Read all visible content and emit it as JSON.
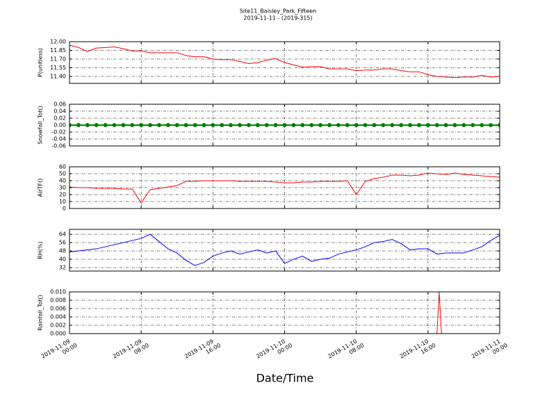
{
  "chart_data": [
    {
      "type": "line",
      "title": "Site11_Baisley_Park_Fifteen",
      "subtitle": "2019-11-11 - (2019-315)",
      "ylabel": "P(unitless)",
      "color": "#ff0000",
      "grid": true,
      "xlim": [
        "2019-11-09 00:00",
        "2019-11-11 00:00"
      ],
      "xticks": [
        "2019-11-09 00:00",
        "2019-11-09 08:00",
        "2019-11-09 16:00",
        "2019-11-10 00:00",
        "2019-11-10 08:00",
        "2019-11-10 16:00",
        "2019-11-11 00:00"
      ],
      "ylim": [
        11.28,
        12.0
      ],
      "yticks": [
        {
          "value": 11.4,
          "label": "11.40"
        },
        11.55,
        {
          "value": 11.7,
          "label": "11.70"
        },
        11.85,
        {
          "value": 12.0,
          "label": "12.00"
        }
      ],
      "x": [
        "2019-11-09 00:00",
        "2019-11-09 01:00",
        "2019-11-09 02:00",
        "2019-11-09 03:00",
        "2019-11-09 04:00",
        "2019-11-09 05:00",
        "2019-11-09 06:00",
        "2019-11-09 07:00",
        "2019-11-09 08:00",
        "2019-11-09 09:00",
        "2019-11-09 10:00",
        "2019-11-09 11:00",
        "2019-11-09 12:00",
        "2019-11-09 13:00",
        "2019-11-09 14:00",
        "2019-11-09 15:00",
        "2019-11-09 16:00",
        "2019-11-09 17:00",
        "2019-11-09 18:00",
        "2019-11-09 19:00",
        "2019-11-09 20:00",
        "2019-11-09 21:00",
        "2019-11-09 22:00",
        "2019-11-09 23:00",
        "2019-11-10 00:00",
        "2019-11-10 01:00",
        "2019-11-10 02:00",
        "2019-11-10 03:00",
        "2019-11-10 04:00",
        "2019-11-10 05:00",
        "2019-11-10 06:00",
        "2019-11-10 07:00",
        "2019-11-10 08:00",
        "2019-11-10 09:00",
        "2019-11-10 10:00",
        "2019-11-10 11:00",
        "2019-11-10 12:00",
        "2019-11-10 13:00",
        "2019-11-10 14:00",
        "2019-11-10 15:00",
        "2019-11-10 16:00",
        "2019-11-10 17:00",
        "2019-11-10 18:00",
        "2019-11-10 19:00",
        "2019-11-10 20:00",
        "2019-11-10 21:00",
        "2019-11-10 22:00",
        "2019-11-10 23:00",
        "2019-11-11 00:00"
      ],
      "values": [
        11.94,
        11.9,
        11.83,
        11.89,
        11.9,
        11.91,
        11.88,
        11.84,
        11.84,
        11.81,
        11.81,
        11.81,
        11.81,
        11.76,
        11.74,
        11.74,
        11.7,
        11.69,
        11.69,
        11.66,
        11.62,
        11.64,
        11.68,
        11.71,
        11.64,
        11.6,
        11.56,
        11.57,
        11.57,
        11.53,
        11.53,
        11.53,
        11.5,
        11.51,
        11.51,
        11.53,
        11.53,
        11.5,
        11.48,
        11.48,
        11.43,
        11.4,
        11.39,
        11.38,
        11.39,
        11.39,
        11.42,
        11.39,
        11.4
      ]
    },
    {
      "type": "line",
      "ylabel": "Snowfall_Tot()",
      "color": "#008000",
      "marker": true,
      "grid": true,
      "xlim": [
        "2019-11-09 00:00",
        "2019-11-11 00:00"
      ],
      "xticks": [
        "2019-11-09 00:00",
        "2019-11-09 08:00",
        "2019-11-09 16:00",
        "2019-11-10 00:00",
        "2019-11-10 08:00",
        "2019-11-10 16:00",
        "2019-11-11 00:00"
      ],
      "ylim": [
        -0.06,
        0.06
      ],
      "yticks": [
        -0.06,
        -0.04,
        -0.02,
        {
          "value": 0,
          "label": "0.00"
        },
        0.02,
        0.04,
        0.06
      ],
      "x": [
        "2019-11-09 00:00",
        "2019-11-09 01:00",
        "2019-11-09 02:00",
        "2019-11-09 03:00",
        "2019-11-09 04:00",
        "2019-11-09 05:00",
        "2019-11-09 06:00",
        "2019-11-09 07:00",
        "2019-11-09 08:00",
        "2019-11-09 09:00",
        "2019-11-09 10:00",
        "2019-11-09 11:00",
        "2019-11-09 12:00",
        "2019-11-09 13:00",
        "2019-11-09 14:00",
        "2019-11-09 15:00",
        "2019-11-09 16:00",
        "2019-11-09 17:00",
        "2019-11-09 18:00",
        "2019-11-09 19:00",
        "2019-11-09 20:00",
        "2019-11-09 21:00",
        "2019-11-09 22:00",
        "2019-11-09 23:00",
        "2019-11-10 00:00",
        "2019-11-10 01:00",
        "2019-11-10 02:00",
        "2019-11-10 03:00",
        "2019-11-10 04:00",
        "2019-11-10 05:00",
        "2019-11-10 06:00",
        "2019-11-10 07:00",
        "2019-11-10 08:00",
        "2019-11-10 09:00",
        "2019-11-10 10:00",
        "2019-11-10 11:00",
        "2019-11-10 12:00",
        "2019-11-10 13:00",
        "2019-11-10 14:00",
        "2019-11-10 15:00",
        "2019-11-10 16:00",
        "2019-11-10 17:00",
        "2019-11-10 18:00",
        "2019-11-10 19:00",
        "2019-11-10 20:00",
        "2019-11-10 21:00",
        "2019-11-10 22:00",
        "2019-11-10 23:00",
        "2019-11-11 00:00"
      ],
      "values": [
        0,
        0,
        0,
        0,
        0,
        0,
        0,
        0,
        0,
        0,
        0,
        0,
        0,
        0,
        0,
        0,
        0,
        0,
        0,
        0,
        0,
        0,
        0,
        0,
        0,
        0,
        0,
        0,
        0,
        0,
        0,
        0,
        0,
        0,
        0,
        0,
        0,
        0,
        0,
        0,
        0,
        0,
        0,
        0,
        0,
        0,
        0,
        0,
        0
      ]
    },
    {
      "type": "line",
      "ylabel": "AirTF()",
      "color": "#ff0000",
      "grid": true,
      "xlim": [
        "2019-11-09 00:00",
        "2019-11-11 00:00"
      ],
      "xticks": [
        "2019-11-09 00:00",
        "2019-11-09 08:00",
        "2019-11-09 16:00",
        "2019-11-10 00:00",
        "2019-11-10 08:00",
        "2019-11-10 16:00",
        "2019-11-11 00:00"
      ],
      "ylim": [
        0,
        60
      ],
      "yticks": [
        0,
        10,
        20,
        30,
        40,
        50,
        60
      ],
      "x": [
        "2019-11-09 00:00",
        "2019-11-09 01:00",
        "2019-11-09 02:00",
        "2019-11-09 03:00",
        "2019-11-09 04:00",
        "2019-11-09 05:00",
        "2019-11-09 06:00",
        "2019-11-09 07:00",
        "2019-11-09 08:00",
        "2019-11-09 09:00",
        "2019-11-09 10:00",
        "2019-11-09 11:00",
        "2019-11-09 12:00",
        "2019-11-09 13:00",
        "2019-11-09 14:00",
        "2019-11-09 15:00",
        "2019-11-09 16:00",
        "2019-11-09 17:00",
        "2019-11-09 18:00",
        "2019-11-09 19:00",
        "2019-11-09 20:00",
        "2019-11-09 21:00",
        "2019-11-09 22:00",
        "2019-11-09 23:00",
        "2019-11-10 00:00",
        "2019-11-10 01:00",
        "2019-11-10 02:00",
        "2019-11-10 03:00",
        "2019-11-10 04:00",
        "2019-11-10 05:00",
        "2019-11-10 06:00",
        "2019-11-10 07:00",
        "2019-11-10 08:00",
        "2019-11-10 09:00",
        "2019-11-10 10:00",
        "2019-11-10 11:00",
        "2019-11-10 12:00",
        "2019-11-10 13:00",
        "2019-11-10 14:00",
        "2019-11-10 15:00",
        "2019-11-10 16:00",
        "2019-11-10 17:00",
        "2019-11-10 18:00",
        "2019-11-10 19:00",
        "2019-11-10 20:00",
        "2019-11-10 21:00",
        "2019-11-10 22:00",
        "2019-11-10 23:00",
        "2019-11-11 00:00"
      ],
      "values": [
        31,
        30,
        30,
        29,
        29,
        29,
        28,
        28,
        8,
        27,
        29,
        31,
        33,
        39,
        39,
        40,
        40,
        40,
        40,
        39,
        39,
        39,
        39,
        38,
        37,
        37,
        38,
        38,
        39,
        39,
        39,
        40,
        20,
        39,
        43,
        45,
        48,
        48,
        47,
        48,
        51,
        50,
        49,
        51,
        49,
        48,
        47,
        46,
        45
      ]
    },
    {
      "type": "line",
      "ylabel": "RH(%)",
      "color": "#0000ff",
      "grid": true,
      "xlim": [
        "2019-11-09 00:00",
        "2019-11-11 00:00"
      ],
      "xticks": [
        "2019-11-09 00:00",
        "2019-11-09 08:00",
        "2019-11-09 16:00",
        "2019-11-10 00:00",
        "2019-11-10 08:00",
        "2019-11-10 16:00",
        "2019-11-11 00:00"
      ],
      "ylim": [
        28.7,
        68.7
      ],
      "yticks": [
        32,
        40,
        48,
        56,
        64
      ],
      "x": [
        "2019-11-09 00:00",
        "2019-11-09 01:00",
        "2019-11-09 02:00",
        "2019-11-09 03:00",
        "2019-11-09 04:00",
        "2019-11-09 05:00",
        "2019-11-09 06:00",
        "2019-11-09 07:00",
        "2019-11-09 08:00",
        "2019-11-09 09:00",
        "2019-11-09 10:00",
        "2019-11-09 11:00",
        "2019-11-09 12:00",
        "2019-11-09 13:00",
        "2019-11-09 14:00",
        "2019-11-09 15:00",
        "2019-11-09 16:00",
        "2019-11-09 17:00",
        "2019-11-09 18:00",
        "2019-11-09 19:00",
        "2019-11-09 20:00",
        "2019-11-09 21:00",
        "2019-11-09 22:00",
        "2019-11-09 23:00",
        "2019-11-10 00:00",
        "2019-11-10 01:00",
        "2019-11-10 02:00",
        "2019-11-10 03:00",
        "2019-11-10 04:00",
        "2019-11-10 05:00",
        "2019-11-10 06:00",
        "2019-11-10 07:00",
        "2019-11-10 08:00",
        "2019-11-10 09:00",
        "2019-11-10 10:00",
        "2019-11-10 11:00",
        "2019-11-10 12:00",
        "2019-11-10 13:00",
        "2019-11-10 14:00",
        "2019-11-10 15:00",
        "2019-11-10 16:00",
        "2019-11-10 17:00",
        "2019-11-10 18:00",
        "2019-11-10 19:00",
        "2019-11-10 20:00",
        "2019-11-10 21:00",
        "2019-11-10 22:00",
        "2019-11-10 23:00",
        "2019-11-11 00:00"
      ],
      "values": [
        47,
        48,
        49,
        50,
        52,
        54,
        56,
        58,
        60,
        64,
        57,
        50,
        46,
        39,
        34,
        37,
        43,
        46,
        48,
        45,
        47,
        49,
        46,
        48,
        36,
        40,
        43,
        38,
        40,
        41,
        45,
        47,
        49,
        52,
        56,
        57,
        59,
        55,
        49,
        50,
        50,
        45,
        46,
        46,
        46,
        49,
        52,
        58,
        63
      ]
    },
    {
      "type": "line",
      "ylabel": "Rainfall_Tot()",
      "xlabel": "Date/Time",
      "color": "#ff0000",
      "grid": true,
      "xticklabels": true,
      "xlim": [
        "2019-11-09 00:00",
        "2019-11-11 00:00"
      ],
      "xticks": [
        "2019-11-09 00:00",
        "2019-11-09 08:00",
        "2019-11-09 16:00",
        "2019-11-10 00:00",
        "2019-11-10 08:00",
        "2019-11-10 16:00",
        "2019-11-11 00:00"
      ],
      "ylim": [
        0,
        0.01
      ],
      "yticks": [
        {
          "value": 0,
          "label": "0.000"
        },
        0.002,
        0.004,
        0.006,
        0.008,
        {
          "value": 0.01,
          "label": "0.010"
        }
      ],
      "x": [
        "2019-11-09 00:00",
        "2019-11-10 17:00",
        "2019-11-10 17:15",
        "2019-11-10 17:30",
        "2019-11-11 00:00"
      ],
      "values": [
        0,
        0,
        0.01,
        0,
        0
      ]
    }
  ]
}
